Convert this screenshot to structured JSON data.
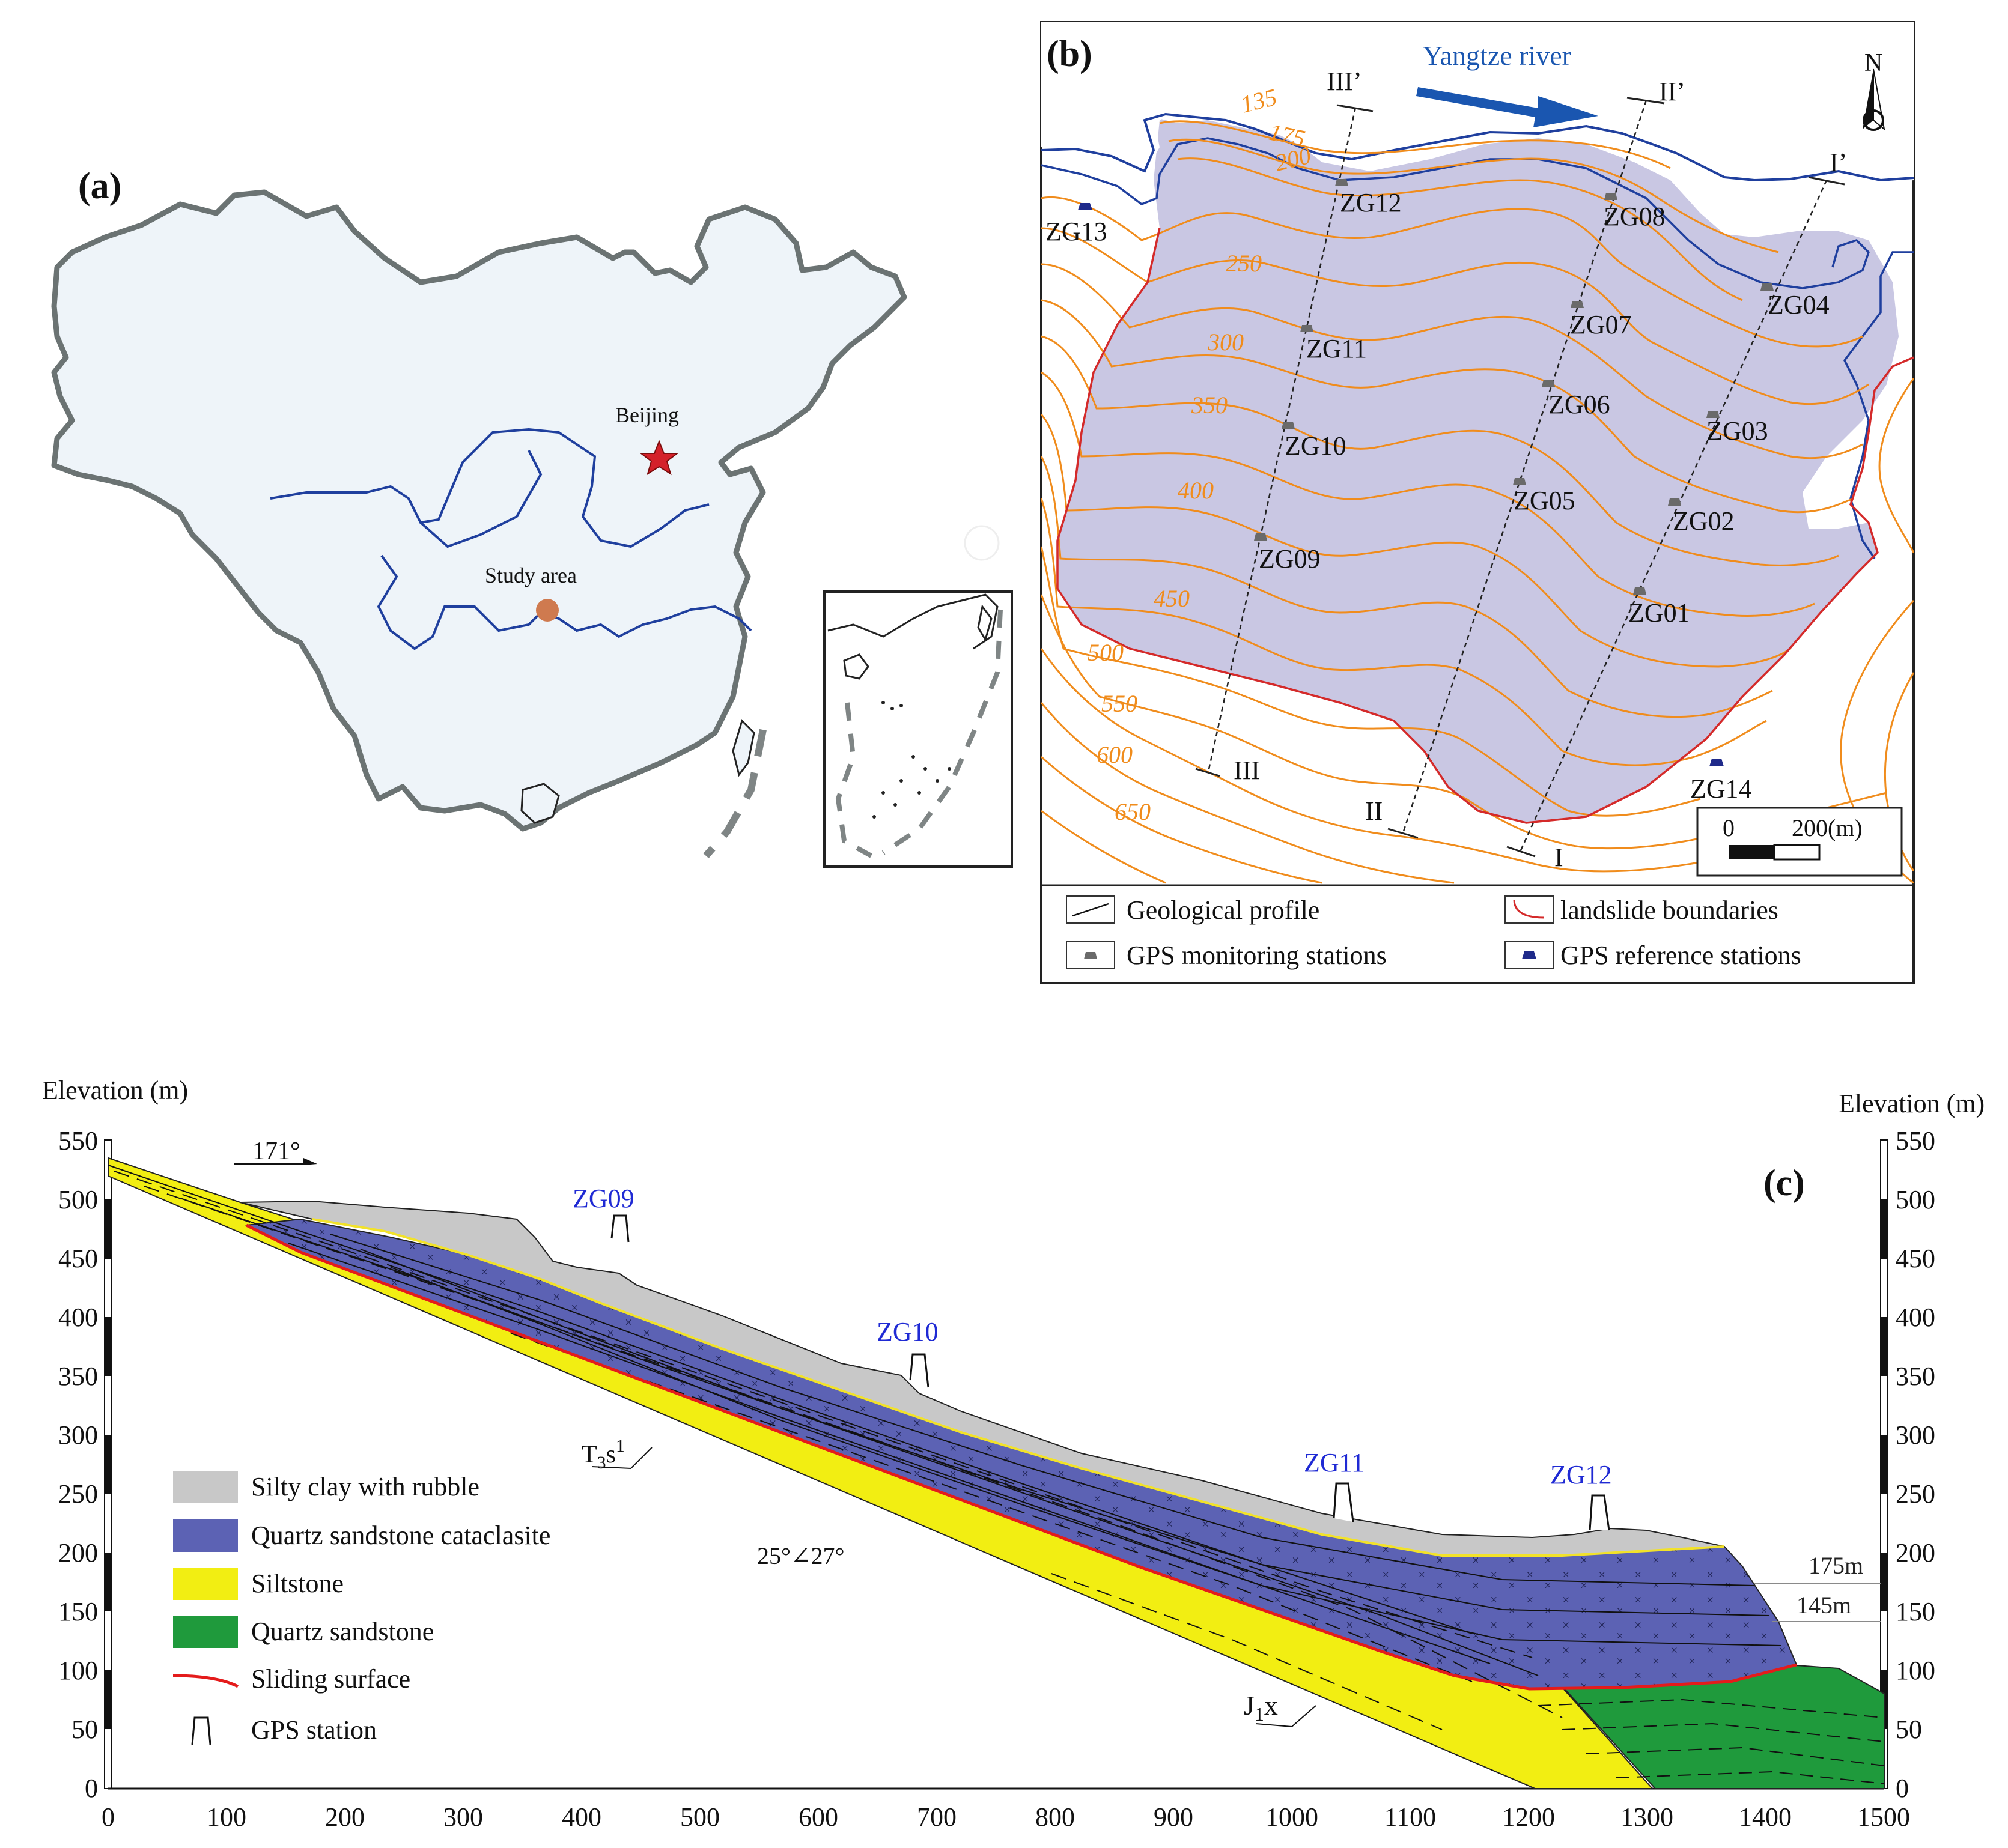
{
  "panel_a": {
    "label": "(a)",
    "beijing_label": "Beijing",
    "study_area_label": "Study area",
    "colors": {
      "land": "#eef4f9",
      "border": "#6b7373",
      "river": "#1f3f9e",
      "star": "#d4212a",
      "study": "#cf7a4f"
    }
  },
  "panel_b": {
    "label": "(b)",
    "river_label": "Yangtze river",
    "north_label": "N",
    "contours": [
      "135",
      "175",
      "200",
      "250",
      "300",
      "350",
      "400",
      "450",
      "500",
      "550",
      "600",
      "650"
    ],
    "profiles": [
      {
        "start": "I",
        "end": "I’"
      },
      {
        "start": "II",
        "end": "II’"
      },
      {
        "start": "III",
        "end": "III’"
      }
    ],
    "monitoring_stations": [
      "ZG01",
      "ZG02",
      "ZG03",
      "ZG04",
      "ZG05",
      "ZG06",
      "ZG07",
      "ZG08",
      "ZG09",
      "ZG10",
      "ZG11",
      "ZG12"
    ],
    "reference_stations": [
      "ZG13",
      "ZG14"
    ],
    "scale": {
      "zero": "0",
      "distance": "200(m)"
    },
    "legend": {
      "geological_profile": "Geological profile",
      "landslide_boundaries": "landslide boundaries",
      "gps_monitoring": "GPS monitoring stations",
      "gps_reference": "GPS reference stations"
    },
    "colors": {
      "landslide_fill": "#c9c7e3",
      "boundary": "#d42a2a",
      "contour": "#f08c1c",
      "river": "#1f3f9e",
      "station": "#6a6a6a",
      "reference": "#1f2a8a"
    }
  },
  "panel_c": {
    "label": "(c)",
    "y_axis_title_left": "Elevation (m)",
    "y_axis_title_right": "Elevation (m)",
    "y_ticks": [
      "0",
      "50",
      "100",
      "150",
      "200",
      "250",
      "300",
      "350",
      "400",
      "450",
      "500",
      "550"
    ],
    "x_ticks": [
      "0",
      "100",
      "200",
      "300",
      "400",
      "500",
      "600",
      "700",
      "800",
      "900",
      "1000",
      "1100",
      "1200",
      "1300",
      "1400",
      "1500"
    ],
    "azimuth": "171°",
    "dip": "25°∠27°",
    "formation_upper": "T3s1",
    "formation_lower": "J1x",
    "water_levels": [
      "175m",
      "145m"
    ],
    "stations": [
      "ZG09",
      "ZG10",
      "ZG11",
      "ZG12"
    ],
    "legend": [
      {
        "label": "Silty clay with rubble",
        "color": "#c8c8c8"
      },
      {
        "label": "Quartz sandstone cataclasite",
        "color": "#5c62b4"
      },
      {
        "label": "Siltstone",
        "color": "#f2ee12"
      },
      {
        "label": "Quartz sandstone",
        "color": "#1f9a3c"
      },
      {
        "label": "Sliding surface",
        "color": "#e41b1b"
      },
      {
        "label": "GPS station",
        "color": "#000000"
      }
    ]
  }
}
